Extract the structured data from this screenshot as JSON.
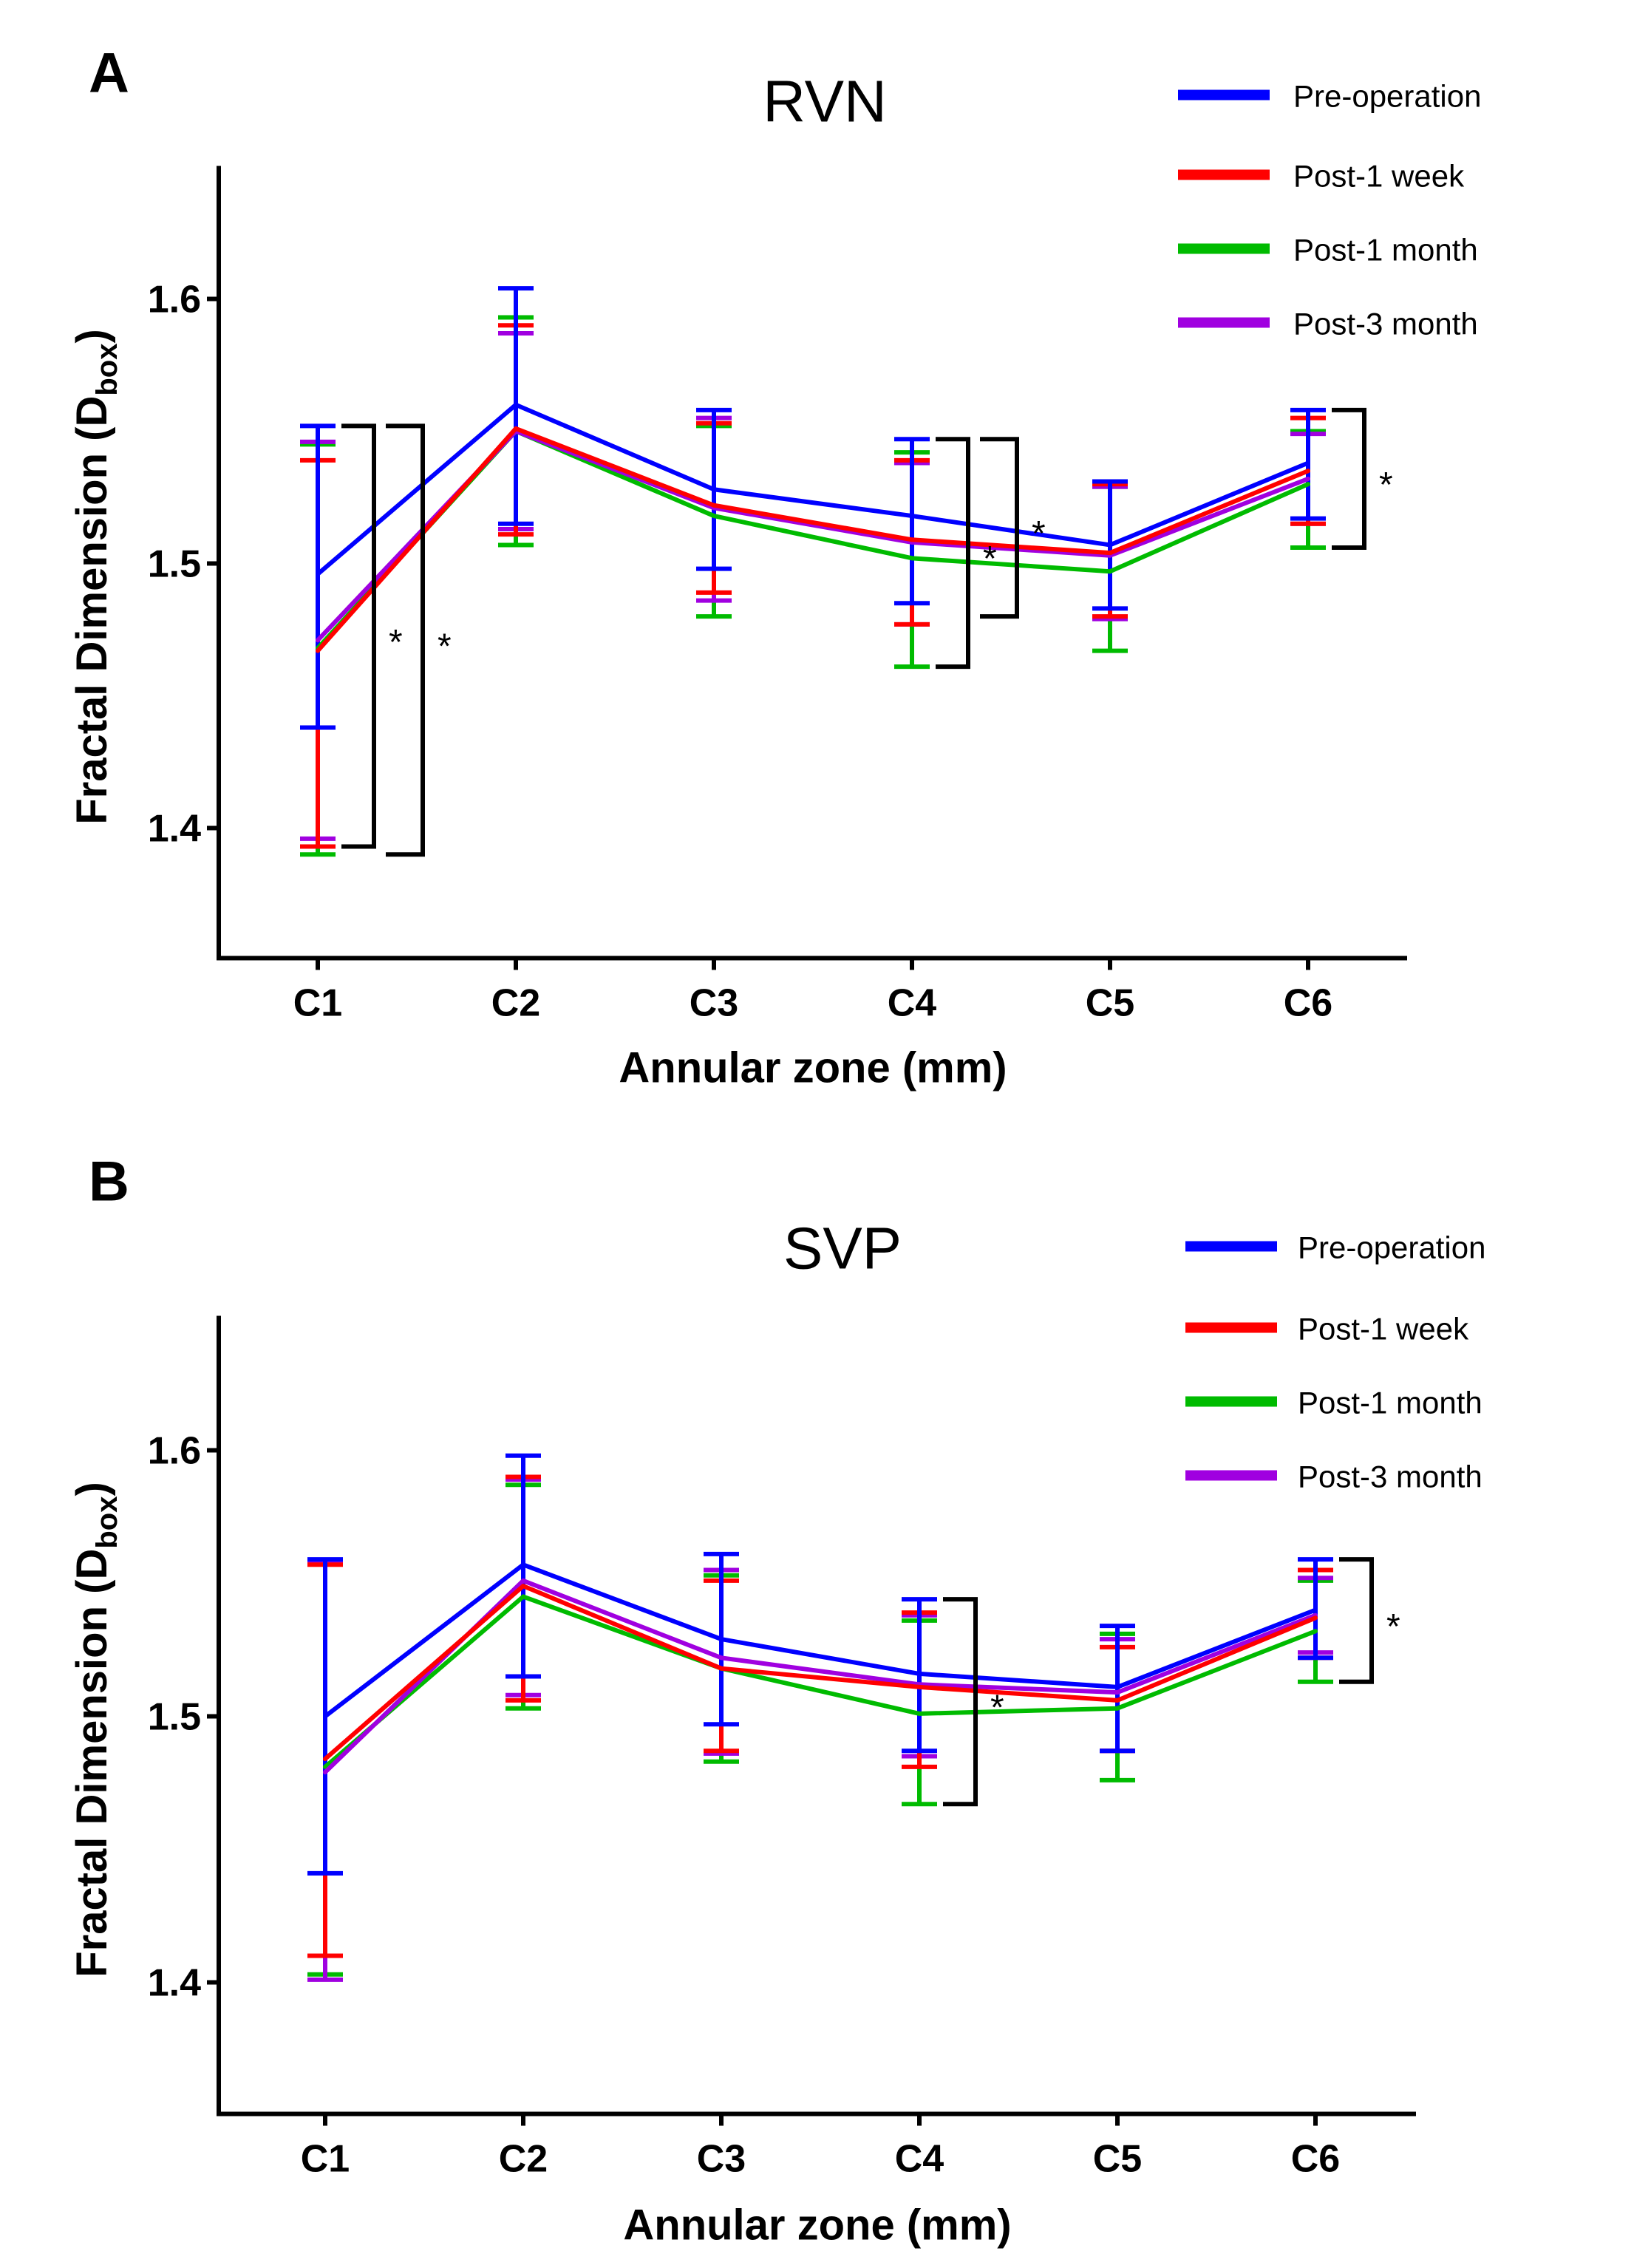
{
  "chart_data": [
    {
      "type": "line",
      "panel": "A",
      "title": "RVN",
      "xlabel": "Annular zone (mm)",
      "ylabel": "Fractal Dimension (D",
      "ylabel_sub": "box",
      "ylabel_end": ")",
      "categories": [
        "C1",
        "C2",
        "C3",
        "C4",
        "C5",
        "C6"
      ],
      "ylim": [
        1.35,
        1.65
      ],
      "yticks": [
        1.4,
        1.5,
        1.6
      ],
      "ytick_labels": [
        "1.4",
        "1.5",
        "1.6"
      ],
      "legend_position": "top-right",
      "grid": false,
      "series": [
        {
          "name": "Pre-operation",
          "color": "#0000ff",
          "values": [
            1.496,
            1.56,
            1.528,
            1.518,
            1.507,
            1.538
          ],
          "err_hi": [
            1.552,
            1.604,
            1.558,
            1.547,
            1.531,
            1.558
          ],
          "err_lo": [
            1.438,
            1.515,
            1.498,
            1.485,
            1.483,
            1.517
          ]
        },
        {
          "name": "Post-1 week",
          "color": "#ff0000",
          "values": [
            1.467,
            1.551,
            1.522,
            1.509,
            1.504,
            1.535
          ],
          "err_hi": [
            1.539,
            1.59,
            1.553,
            1.539,
            1.53,
            1.555
          ],
          "err_lo": [
            1.393,
            1.511,
            1.489,
            1.477,
            1.48,
            1.515
          ]
        },
        {
          "name": "Post-1 month",
          "color": "#00bb00",
          "values": [
            1.468,
            1.55,
            1.518,
            1.502,
            1.497,
            1.53
          ],
          "err_hi": [
            1.545,
            1.593,
            1.552,
            1.542,
            1.529,
            1.55
          ],
          "err_lo": [
            1.39,
            1.507,
            1.48,
            1.461,
            1.467,
            1.506
          ]
        },
        {
          "name": "Post-3 month",
          "color": "#a000e0",
          "values": [
            1.471,
            1.55,
            1.521,
            1.508,
            1.503,
            1.532
          ],
          "err_hi": [
            1.546,
            1.587,
            1.555,
            1.538,
            1.529,
            1.549
          ],
          "err_lo": [
            1.396,
            1.513,
            1.486,
            1.477,
            1.479,
            1.515
          ]
        }
      ],
      "significance": [
        {
          "category": "C1",
          "top": 1.552,
          "bottom": 1.393,
          "offset": 1,
          "label": "*"
        },
        {
          "category": "C1",
          "top": 1.552,
          "bottom": 1.39,
          "offset": 2,
          "label": "*"
        },
        {
          "category": "C4",
          "top": 1.547,
          "bottom": 1.461,
          "offset": 1,
          "label": "*"
        },
        {
          "category": "C4",
          "top": 1.547,
          "bottom": 1.48,
          "offset": 2,
          "label": "*"
        },
        {
          "category": "C6",
          "top": 1.558,
          "bottom": 1.506,
          "offset": 1,
          "label": "*"
        }
      ]
    },
    {
      "type": "line",
      "panel": "B",
      "title": "SVP",
      "xlabel": "Annular zone (mm)",
      "ylabel": "Fractal Dimension (D",
      "ylabel_sub": "box",
      "ylabel_end": ")",
      "categories": [
        "C1",
        "C2",
        "C3",
        "C4",
        "C5",
        "C6"
      ],
      "ylim": [
        1.35,
        1.65
      ],
      "yticks": [
        1.4,
        1.5,
        1.6
      ],
      "ytick_labels": [
        "1.4",
        "1.5",
        "1.6"
      ],
      "legend_position": "top-right",
      "grid": false,
      "series": [
        {
          "name": "Pre-operation",
          "color": "#0000ff",
          "values": [
            1.5,
            1.557,
            1.529,
            1.516,
            1.511,
            1.54
          ],
          "err_hi": [
            1.559,
            1.598,
            1.561,
            1.544,
            1.534,
            1.559
          ],
          "err_lo": [
            1.441,
            1.515,
            1.497,
            1.487,
            1.487,
            1.522
          ]
        },
        {
          "name": "Post-1 week",
          "color": "#ff0000",
          "values": [
            1.484,
            1.549,
            1.518,
            1.511,
            1.506,
            1.537
          ],
          "err_hi": [
            1.557,
            1.59,
            1.551,
            1.539,
            1.526,
            1.555
          ],
          "err_lo": [
            1.41,
            1.506,
            1.487,
            1.481,
            1.487,
            1.522
          ]
        },
        {
          "name": "Post-1 month",
          "color": "#00bb00",
          "values": [
            1.481,
            1.545,
            1.518,
            1.501,
            1.503,
            1.532
          ],
          "err_hi": [
            1.558,
            1.587,
            1.553,
            1.536,
            1.531,
            1.551
          ],
          "err_lo": [
            1.403,
            1.503,
            1.483,
            1.467,
            1.476,
            1.513
          ]
        },
        {
          "name": "Post-3 month",
          "color": "#a000e0",
          "values": [
            1.479,
            1.551,
            1.522,
            1.512,
            1.509,
            1.538
          ],
          "err_hi": [
            1.558,
            1.589,
            1.555,
            1.538,
            1.529,
            1.552
          ],
          "err_lo": [
            1.401,
            1.508,
            1.486,
            1.485,
            1.487,
            1.524
          ]
        }
      ],
      "significance": [
        {
          "category": "C4",
          "top": 1.544,
          "bottom": 1.467,
          "offset": 1,
          "label": "*"
        },
        {
          "category": "C6",
          "top": 1.559,
          "bottom": 1.513,
          "offset": 1,
          "label": "*"
        }
      ]
    }
  ]
}
